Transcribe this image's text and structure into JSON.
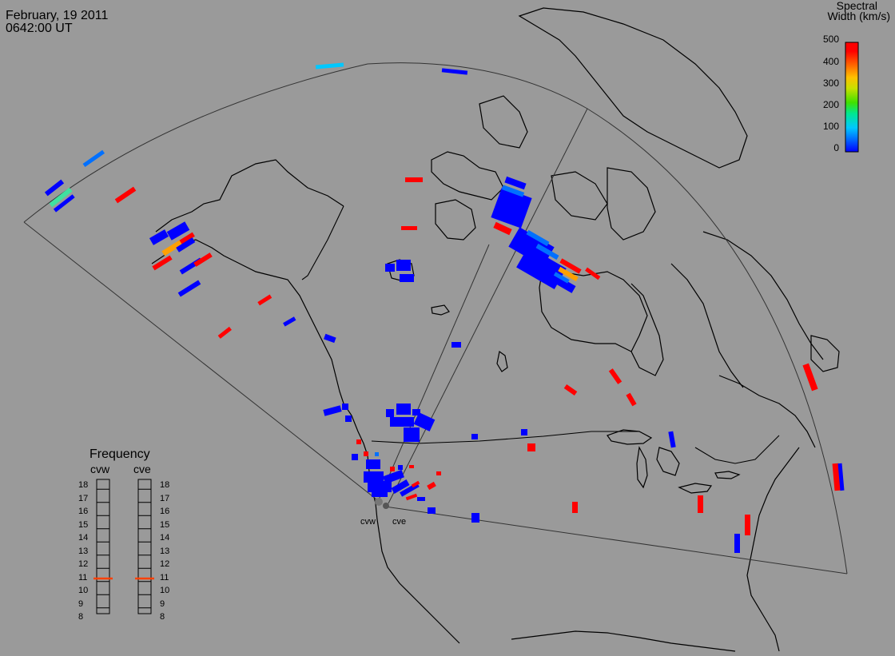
{
  "header": {
    "date": "February, 19 2011",
    "time": "0642:00 UT"
  },
  "colorbar": {
    "title_line1": "Spectral",
    "title_line2": "Width (km/s)",
    "ticks": [
      "500",
      "400",
      "300",
      "200",
      "100",
      "0"
    ],
    "colors": [
      "#0000ff",
      "#0070ff",
      "#00c8ff",
      "#00e890",
      "#40e000",
      "#c8e000",
      "#ffc000",
      "#ff6000",
      "#ff0000"
    ]
  },
  "frequency_panel": {
    "title": "Frequency",
    "radars": [
      "cvw",
      "cve"
    ],
    "labels": [
      "18",
      "17",
      "16",
      "15",
      "14",
      "13",
      "12",
      "11",
      "10",
      "9",
      "8"
    ],
    "indicator_color": "#ff4000",
    "cvw_indicator_mhz": 10.8,
    "cve_indicator_mhz": 10.8
  },
  "radar_sites": {
    "west": "cvw",
    "east": "cve"
  }
}
